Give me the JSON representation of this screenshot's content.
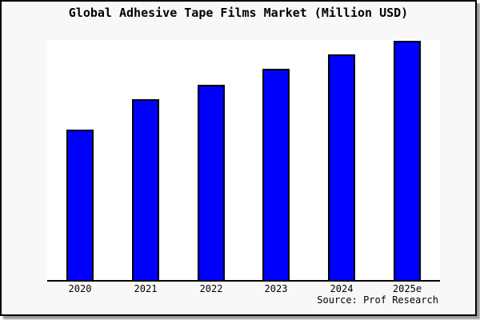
{
  "figure": {
    "title": "Global Adhesive Tape Films Market (Million USD)",
    "source": "Source: Prof Research"
  },
  "colors": {
    "bar_fill": "#0000ff",
    "bar_edge": "#000000",
    "figure_background": "#f8f8f8",
    "plot_background": "#ffffff",
    "frame_border": "#000000",
    "frame_shadow": "#999999",
    "text": "#000000"
  },
  "chart_data": {
    "type": "bar",
    "title": "Global Adhesive Tape Films Market (Million USD)",
    "categories": [
      "2020",
      "2021",
      "2022",
      "2023",
      "2024",
      "2025e"
    ],
    "values": [
      188,
      226,
      244,
      264,
      282,
      299
    ],
    "xlabel": "",
    "ylabel": "",
    "ylim": [
      0,
      300
    ],
    "y_axis_shown": false,
    "grid": false,
    "legend": false,
    "bar_color": "#0000ff",
    "bar_edge_color": "#000000",
    "annotations": [
      "Source: Prof Research"
    ],
    "note": "No y-axis tick labels are shown in the figure; values are estimated in axis units where the plot height equals 300 units."
  }
}
